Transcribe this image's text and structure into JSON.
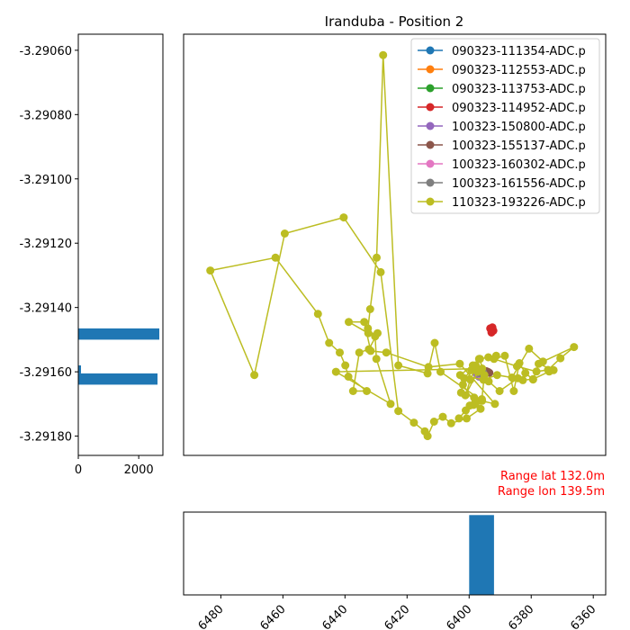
{
  "title": "Iranduba - Position 2",
  "range_text": {
    "lat": "Range lat 132.0m",
    "lon": "Range lon 139.5m",
    "color": "#ff0000"
  },
  "chart_data": [
    {
      "id": "map",
      "type": "line",
      "title": "Iranduba - Position 2",
      "legend": {
        "placement": "top-right"
      },
      "xlim": [
        6492,
        6356
      ],
      "ylim": [
        -3.29186,
        -3.29055
      ],
      "series": [
        {
          "name": "090323-111354-ADC.p",
          "color": "#1f77b4",
          "x": [
            6395.5,
            6396.1,
            6394.9
          ],
          "y": [
            -3.291604,
            -3.291602,
            -3.291606
          ]
        },
        {
          "name": "090323-112553-ADC.p",
          "color": "#ff7f0e",
          "x": [
            6395.6,
            6396.0,
            6395.2
          ],
          "y": [
            -3.291603,
            -3.291605,
            -3.291601
          ]
        },
        {
          "name": "090323-113753-ADC.p",
          "color": "#2ca02c",
          "x": [
            6395.8,
            6395.4,
            6396.2
          ],
          "y": [
            -3.291602,
            -3.2916,
            -3.291604
          ]
        },
        {
          "name": "090323-114952-ADC.p",
          "color": "#d62728",
          "x": [
            6392.5,
            6393.0,
            6392.2,
            6392.8,
            6393.2
          ],
          "y": [
            -3.291462,
            -3.291468,
            -3.291472,
            -3.291478,
            -3.291465
          ]
        },
        {
          "name": "100323-150800-ADC.p",
          "color": "#9467bd",
          "x": [
            6397.0,
            6397.5,
            6396.8
          ],
          "y": [
            -3.291612,
            -3.291608,
            -3.291615
          ]
        },
        {
          "name": "100323-155137-ADC.p",
          "color": "#8c564b",
          "x": [
            6394.0,
            6393.5,
            6394.5
          ],
          "y": [
            -3.2916,
            -3.291603,
            -3.291598
          ]
        },
        {
          "name": "100323-160302-ADC.p",
          "color": "#e377c2",
          "x": [
            6396.5,
            6396.9,
            6396.2
          ],
          "y": [
            -3.291606,
            -3.291604,
            -3.291609
          ]
        },
        {
          "name": "100323-161556-ADC.p",
          "color": "#7f7f7f",
          "x": [
            6396.0,
            6395.5,
            6396.6
          ],
          "y": [
            -3.291598,
            -3.291602,
            -3.291605
          ]
        },
        {
          "name": "110323-193226-ADC.p",
          "color": "#bcbd22",
          "x": [
            6391.3,
            6393.8,
            6396.5,
            6398.8,
            6402.9,
            6395.4,
            6391.0,
            6386.2,
            6380.7,
            6376.2,
            6366.2,
            6370.6,
            6374.6,
            6378.3,
            6384.6,
            6392.0,
            6388.5,
            6385.6,
            6383.8,
            6381.9,
            6379.4,
            6377.6,
            6372.8,
            6374.2,
            6379.4,
            6382.7,
            6384.3,
            6390.2,
            6393.7,
            6396.8,
            6399.6,
            6401.2,
            6397.3,
            6395.1,
            6395.9,
            6398.6,
            6396.3,
            6400.8,
            6405.8,
            6408.5,
            6411.3,
            6413.4,
            6414.3,
            6417.8,
            6422.8,
            6428.5,
            6440.4,
            6459.4,
            6469.2,
            6483.4,
            6462.4,
            6448.7,
            6445.1,
            6441.7,
            6439.9,
            6438.9,
            6433.0,
            6437.4,
            6435.4,
            6432.3,
            6429.5,
            6432.5,
            6438.8,
            6433.8,
            6431.7,
            6426.7,
            6413.1,
            6403.0,
            6391.7,
            6396.2,
            6401.1,
            6403.3,
            6399.8,
            6398.4,
            6402.6,
            6401.6,
            6399.3,
            6397.9,
            6402.0,
            6398.0,
            6395.8,
            6409.2,
            6411.1,
            6413.4,
            6422.8,
            6427.7,
            6429.8,
            6431.9,
            6432.6,
            6430.3,
            6429.9,
            6425.3,
            6442.9,
            6395.8
          ],
          "y": [
            -3.29155,
            -3.291555,
            -3.29156,
            -3.29158,
            -3.29161,
            -3.291625,
            -3.29161,
            -3.291618,
            -3.291528,
            -3.291568,
            -3.291523,
            -3.291558,
            -3.291594,
            -3.291599,
            -3.291583,
            -3.29156,
            -3.29155,
            -3.29166,
            -3.291573,
            -3.291604,
            -3.291624,
            -3.291575,
            -3.291595,
            -3.291599,
            -3.291623,
            -3.291626,
            -3.29162,
            -3.29166,
            -3.29163,
            -3.29156,
            -3.291625,
            -3.291673,
            -3.2916,
            -3.29161,
            -3.291685,
            -3.291703,
            -3.291715,
            -3.291745,
            -3.29176,
            -3.29174,
            -3.291755,
            -3.2918,
            -3.291785,
            -3.291758,
            -3.291722,
            -3.29129,
            -3.29112,
            -3.29117,
            -3.29161,
            -3.291285,
            -3.291245,
            -3.29142,
            -3.29151,
            -3.29154,
            -3.29158,
            -3.291615,
            -3.29166,
            -3.29166,
            -3.29154,
            -3.29153,
            -3.29148,
            -3.29148,
            -3.291445,
            -3.291445,
            -3.291535,
            -3.29154,
            -3.291585,
            -3.291575,
            -3.2917,
            -3.29169,
            -3.29172,
            -3.291745,
            -3.291705,
            -3.29168,
            -3.291665,
            -3.29162,
            -3.291595,
            -3.29158,
            -3.29164,
            -3.2917,
            -3.29169,
            -3.2916,
            -3.29151,
            -3.291605,
            -3.29158,
            -3.290615,
            -3.291245,
            -3.291405,
            -3.291465,
            -3.29149,
            -3.29156,
            -3.2917,
            -3.2916,
            -3.29159
          ]
        }
      ]
    },
    {
      "id": "lat_hist",
      "type": "bar",
      "orientation": "horizontal",
      "color": "#1f77b4",
      "xlim": [
        0,
        2800
      ],
      "xticks": [
        "0",
        "2000"
      ],
      "yticks": [
        "-3.29060",
        "-3.29080",
        "-3.29100",
        "-3.29120",
        "-3.29140",
        "-3.29160",
        "-3.29180"
      ],
      "ylim": [
        -3.29186,
        -3.29055
      ],
      "bins": [
        {
          "y0": -3.2915,
          "y1": -3.291465,
          "value": 2680
        },
        {
          "y0": -3.291605,
          "y1": -3.29158,
          "value": 90
        },
        {
          "y0": -3.29164,
          "y1": -3.291605,
          "value": 2620
        }
      ]
    },
    {
      "id": "lon_hist",
      "type": "bar",
      "color": "#1f77b4",
      "xlim": [
        6492,
        6356
      ],
      "ylim": [
        0,
        2800
      ],
      "xticks": [
        "6480",
        "6460",
        "6440",
        "6420",
        "6400",
        "6380",
        "6360"
      ],
      "bins": [
        {
          "x0": 6400,
          "x1": 6392,
          "value": 2700
        }
      ]
    }
  ]
}
